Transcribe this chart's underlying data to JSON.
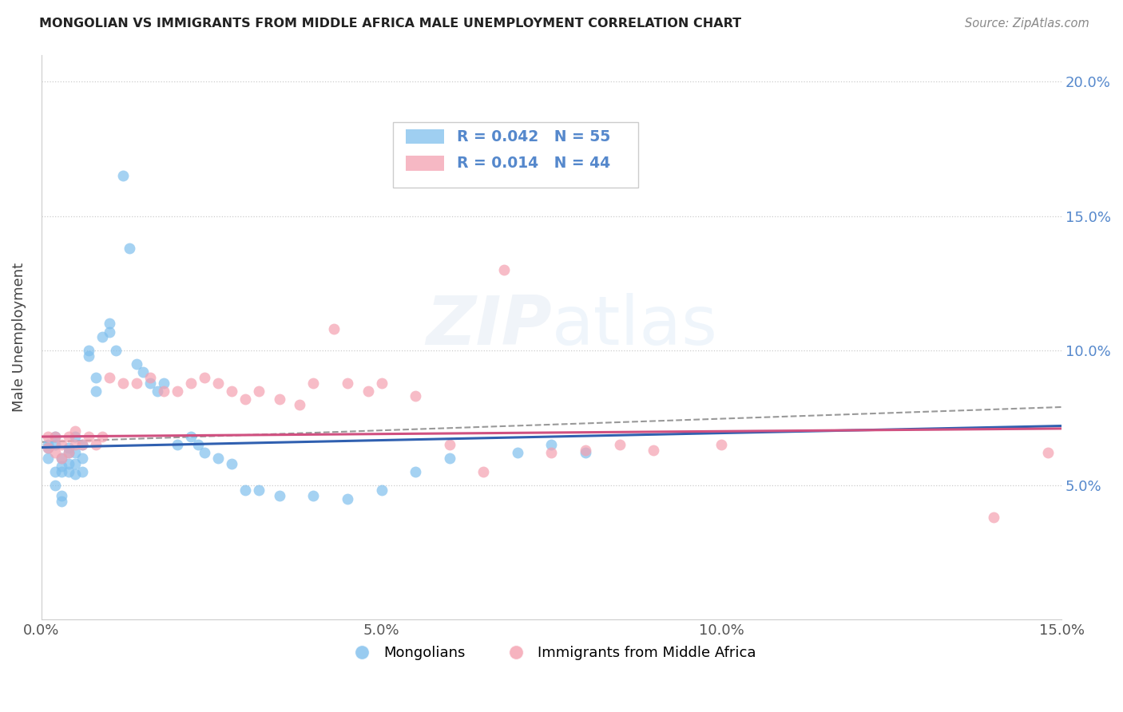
{
  "title": "MONGOLIAN VS IMMIGRANTS FROM MIDDLE AFRICA MALE UNEMPLOYMENT CORRELATION CHART",
  "source": "Source: ZipAtlas.com",
  "ylabel": "Male Unemployment",
  "xlim": [
    0,
    0.15
  ],
  "ylim": [
    0,
    0.21
  ],
  "xticks": [
    0.0,
    0.05,
    0.1,
    0.15
  ],
  "xtick_labels": [
    "0.0%",
    "5.0%",
    "10.0%",
    "15.0%"
  ],
  "yticks": [
    0.05,
    0.1,
    0.15,
    0.2
  ],
  "ytick_labels": [
    "5.0%",
    "10.0%",
    "15.0%",
    "20.0%"
  ],
  "blue_color": "#7fbfed",
  "pink_color": "#f4a0b0",
  "blue_line_color": "#3060b0",
  "pink_line_color": "#d05080",
  "dashed_line_color": "#999999",
  "legend_label_blue": "Mongolians",
  "legend_label_pink": "Immigrants from Middle Africa",
  "watermark": "ZIPatlas",
  "tick_color": "#5588cc",
  "blue_x": [
    0.001,
    0.001,
    0.001,
    0.002,
    0.002,
    0.002,
    0.002,
    0.003,
    0.003,
    0.003,
    0.003,
    0.003,
    0.004,
    0.004,
    0.004,
    0.004,
    0.005,
    0.005,
    0.005,
    0.005,
    0.006,
    0.006,
    0.006,
    0.007,
    0.007,
    0.008,
    0.008,
    0.009,
    0.01,
    0.01,
    0.011,
    0.012,
    0.013,
    0.014,
    0.015,
    0.016,
    0.017,
    0.018,
    0.02,
    0.022,
    0.023,
    0.024,
    0.026,
    0.028,
    0.03,
    0.032,
    0.035,
    0.04,
    0.045,
    0.05,
    0.055,
    0.06,
    0.07,
    0.075,
    0.08
  ],
  "blue_y": [
    0.065,
    0.064,
    0.06,
    0.068,
    0.065,
    0.055,
    0.05,
    0.06,
    0.057,
    0.055,
    0.046,
    0.044,
    0.064,
    0.062,
    0.058,
    0.055,
    0.068,
    0.062,
    0.058,
    0.054,
    0.065,
    0.06,
    0.055,
    0.1,
    0.098,
    0.09,
    0.085,
    0.105,
    0.11,
    0.107,
    0.1,
    0.165,
    0.138,
    0.095,
    0.092,
    0.088,
    0.085,
    0.088,
    0.065,
    0.068,
    0.065,
    0.062,
    0.06,
    0.058,
    0.048,
    0.048,
    0.046,
    0.046,
    0.045,
    0.048,
    0.055,
    0.06,
    0.062,
    0.065,
    0.062
  ],
  "pink_x": [
    0.001,
    0.001,
    0.002,
    0.002,
    0.003,
    0.003,
    0.004,
    0.004,
    0.005,
    0.005,
    0.006,
    0.007,
    0.008,
    0.009,
    0.01,
    0.012,
    0.014,
    0.016,
    0.018,
    0.02,
    0.022,
    0.024,
    0.026,
    0.028,
    0.03,
    0.032,
    0.035,
    0.038,
    0.04,
    0.043,
    0.045,
    0.048,
    0.05,
    0.055,
    0.06,
    0.065,
    0.068,
    0.075,
    0.08,
    0.085,
    0.09,
    0.1,
    0.14,
    0.148
  ],
  "pink_y": [
    0.068,
    0.064,
    0.068,
    0.062,
    0.065,
    0.06,
    0.068,
    0.062,
    0.07,
    0.065,
    0.065,
    0.068,
    0.065,
    0.068,
    0.09,
    0.088,
    0.088,
    0.09,
    0.085,
    0.085,
    0.088,
    0.09,
    0.088,
    0.085,
    0.082,
    0.085,
    0.082,
    0.08,
    0.088,
    0.108,
    0.088,
    0.085,
    0.088,
    0.083,
    0.065,
    0.055,
    0.13,
    0.062,
    0.063,
    0.065,
    0.063,
    0.065,
    0.038,
    0.062
  ],
  "blue_trend_x0": 0.0,
  "blue_trend_y0": 0.064,
  "blue_trend_x1": 0.15,
  "blue_trend_y1": 0.072,
  "pink_trend_x0": 0.0,
  "pink_trend_y0": 0.068,
  "pink_trend_x1": 0.15,
  "pink_trend_y1": 0.071,
  "dash_trend_x0": 0.0,
  "dash_trend_y0": 0.066,
  "dash_trend_x1": 0.15,
  "dash_trend_y1": 0.079
}
